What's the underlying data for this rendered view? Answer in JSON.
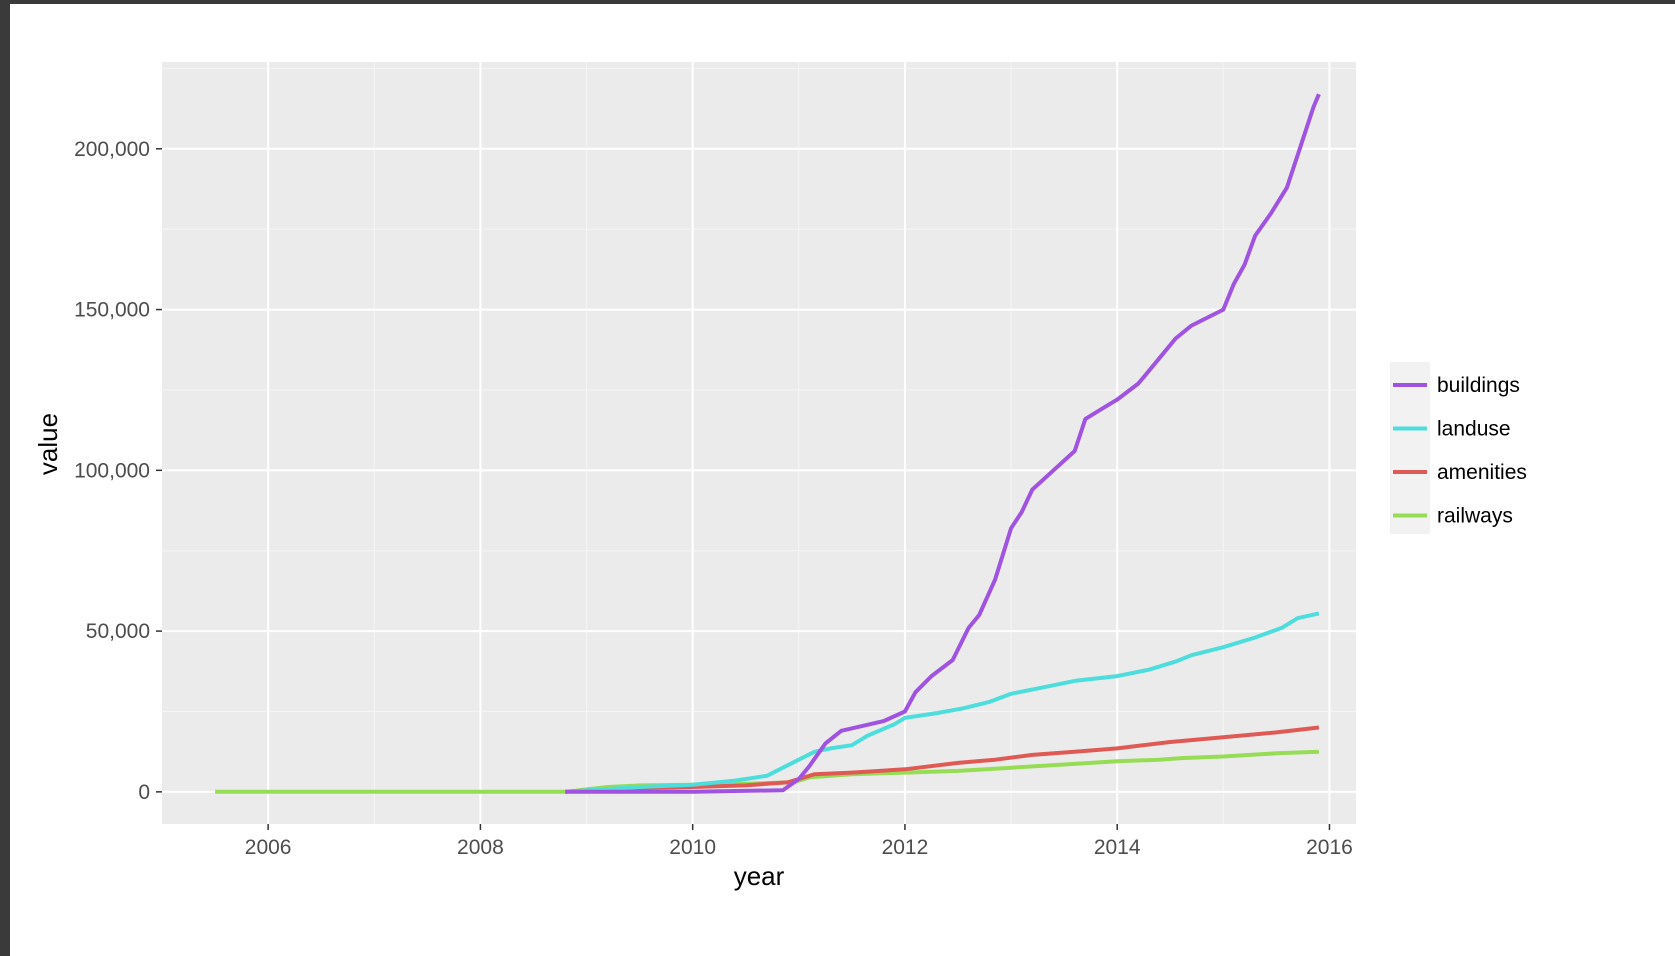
{
  "chart_data": {
    "type": "line",
    "title": "",
    "xlabel": "year",
    "ylabel": "value",
    "xlim": [
      2005.0,
      2016.25
    ],
    "ylim": [
      -10000,
      227000
    ],
    "x_ticks": [
      2006,
      2008,
      2010,
      2012,
      2014,
      2016
    ],
    "x_tick_labels": [
      "2006",
      "2008",
      "2010",
      "2012",
      "2014",
      "2016"
    ],
    "y_ticks": [
      0,
      50000,
      100000,
      150000,
      200000
    ],
    "y_tick_labels": [
      "0",
      "50,000",
      "100,000",
      "150,000",
      "200,000"
    ],
    "grid": true,
    "legend_position": "right",
    "series": [
      {
        "name": "buildings",
        "color": "#A052E0",
        "points": [
          [
            2008.8,
            0
          ],
          [
            2010.0,
            0
          ],
          [
            2010.85,
            500
          ],
          [
            2011.0,
            4000
          ],
          [
            2011.1,
            8000
          ],
          [
            2011.25,
            15000
          ],
          [
            2011.4,
            19000
          ],
          [
            2011.6,
            20500
          ],
          [
            2011.8,
            22000
          ],
          [
            2012.0,
            25000
          ],
          [
            2012.1,
            31000
          ],
          [
            2012.25,
            36000
          ],
          [
            2012.45,
            41000
          ],
          [
            2012.6,
            51000
          ],
          [
            2012.7,
            55000
          ],
          [
            2012.85,
            66000
          ],
          [
            2013.0,
            82000
          ],
          [
            2013.1,
            87000
          ],
          [
            2013.2,
            94000
          ],
          [
            2013.4,
            100000
          ],
          [
            2013.6,
            106000
          ],
          [
            2013.7,
            116000
          ],
          [
            2013.85,
            119000
          ],
          [
            2014.0,
            122000
          ],
          [
            2014.2,
            127000
          ],
          [
            2014.4,
            135000
          ],
          [
            2014.55,
            141000
          ],
          [
            2014.7,
            145000
          ],
          [
            2014.85,
            147500
          ],
          [
            2015.0,
            150000
          ],
          [
            2015.1,
            158000
          ],
          [
            2015.2,
            164000
          ],
          [
            2015.3,
            173000
          ],
          [
            2015.45,
            180000
          ],
          [
            2015.6,
            188000
          ],
          [
            2015.75,
            203000
          ],
          [
            2015.85,
            213000
          ],
          [
            2015.9,
            217000
          ]
        ]
      },
      {
        "name": "landuse",
        "color": "#4DDDDD",
        "points": [
          [
            2008.8,
            0
          ],
          [
            2009.5,
            1500
          ],
          [
            2010.0,
            2200
          ],
          [
            2010.4,
            3500
          ],
          [
            2010.7,
            5000
          ],
          [
            2010.85,
            7500
          ],
          [
            2011.0,
            10000
          ],
          [
            2011.15,
            12500
          ],
          [
            2011.3,
            13500
          ],
          [
            2011.5,
            14500
          ],
          [
            2011.65,
            17500
          ],
          [
            2011.9,
            21000
          ],
          [
            2012.0,
            23000
          ],
          [
            2012.3,
            24500
          ],
          [
            2012.55,
            26000
          ],
          [
            2012.8,
            28000
          ],
          [
            2013.0,
            30500
          ],
          [
            2013.3,
            32500
          ],
          [
            2013.6,
            34500
          ],
          [
            2014.0,
            36000
          ],
          [
            2014.3,
            38000
          ],
          [
            2014.55,
            40500
          ],
          [
            2014.7,
            42500
          ],
          [
            2015.0,
            45000
          ],
          [
            2015.3,
            48000
          ],
          [
            2015.55,
            51000
          ],
          [
            2015.7,
            54000
          ],
          [
            2015.9,
            55500
          ]
        ]
      },
      {
        "name": "amenities",
        "color": "#E05A55",
        "points": [
          [
            2008.8,
            0
          ],
          [
            2009.3,
            1000
          ],
          [
            2010.0,
            1500
          ],
          [
            2010.5,
            2000
          ],
          [
            2010.9,
            3000
          ],
          [
            2011.0,
            4000
          ],
          [
            2011.15,
            5500
          ],
          [
            2011.5,
            6000
          ],
          [
            2012.0,
            7000
          ],
          [
            2012.5,
            9000
          ],
          [
            2012.85,
            10000
          ],
          [
            2013.2,
            11500
          ],
          [
            2013.6,
            12500
          ],
          [
            2014.0,
            13500
          ],
          [
            2014.5,
            15500
          ],
          [
            2015.0,
            17000
          ],
          [
            2015.5,
            18500
          ],
          [
            2015.9,
            20000
          ]
        ]
      },
      {
        "name": "railways",
        "color": "#96DD55",
        "points": [
          [
            2005.5,
            0
          ],
          [
            2008.0,
            0
          ],
          [
            2008.8,
            0
          ],
          [
            2009.0,
            800
          ],
          [
            2009.2,
            1500
          ],
          [
            2009.5,
            2000
          ],
          [
            2010.0,
            2200
          ],
          [
            2010.5,
            2500
          ],
          [
            2010.95,
            3000
          ],
          [
            2011.1,
            4500
          ],
          [
            2011.5,
            5500
          ],
          [
            2012.0,
            6000
          ],
          [
            2012.5,
            6500
          ],
          [
            2013.0,
            7500
          ],
          [
            2013.5,
            8500
          ],
          [
            2014.0,
            9500
          ],
          [
            2014.4,
            10000
          ],
          [
            2014.6,
            10500
          ],
          [
            2015.0,
            11000
          ],
          [
            2015.5,
            12000
          ],
          [
            2015.9,
            12500
          ]
        ]
      }
    ]
  }
}
